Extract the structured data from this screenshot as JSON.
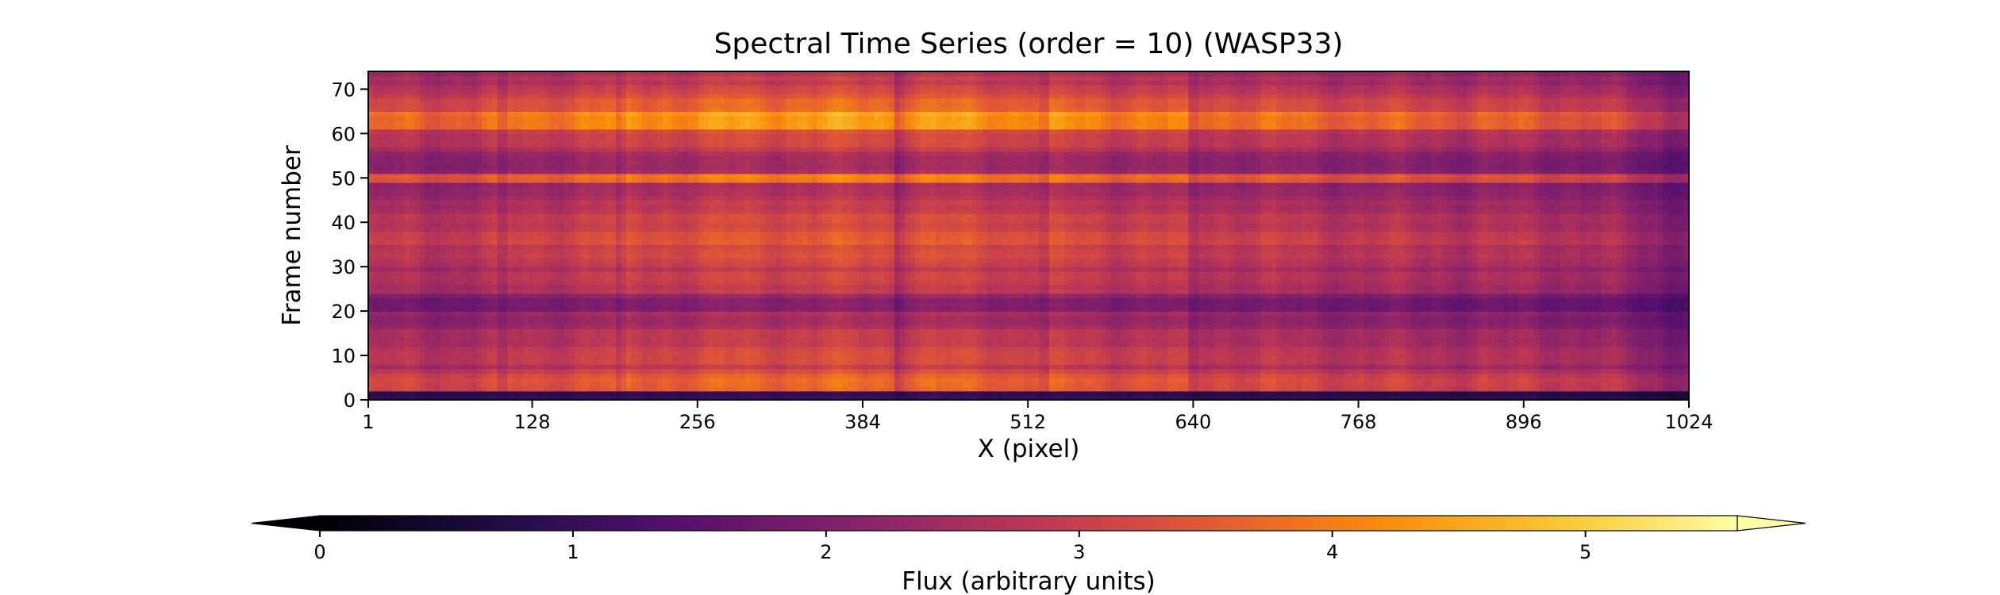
{
  "chart_data": {
    "type": "heatmap",
    "title": "Spectral Time Series (order = 10) (WASP33)",
    "xlabel": "X (pixel)",
    "ylabel": "Frame number",
    "colorbar_label": "Flux (arbitrary units)",
    "colormap": "inferno",
    "xlim": [
      1,
      1024
    ],
    "ylim": [
      0,
      74
    ],
    "x_ticks": [
      1,
      128,
      256,
      384,
      512,
      640,
      768,
      896,
      1024
    ],
    "y_ticks": [
      0,
      10,
      20,
      30,
      40,
      50,
      60,
      70
    ],
    "color_range": [
      0,
      5.6
    ],
    "colorbar_ticks": [
      0,
      1,
      2,
      3,
      4,
      5
    ],
    "colorbar_extend": "both",
    "colorbar_position": "bottom",
    "grid": false,
    "absorption_lines_x": [
      105,
      196,
      412,
      525,
      640
    ],
    "bright_frames": [
      50,
      63,
      26,
      5
    ],
    "dark_frames": [
      1,
      22
    ]
  }
}
